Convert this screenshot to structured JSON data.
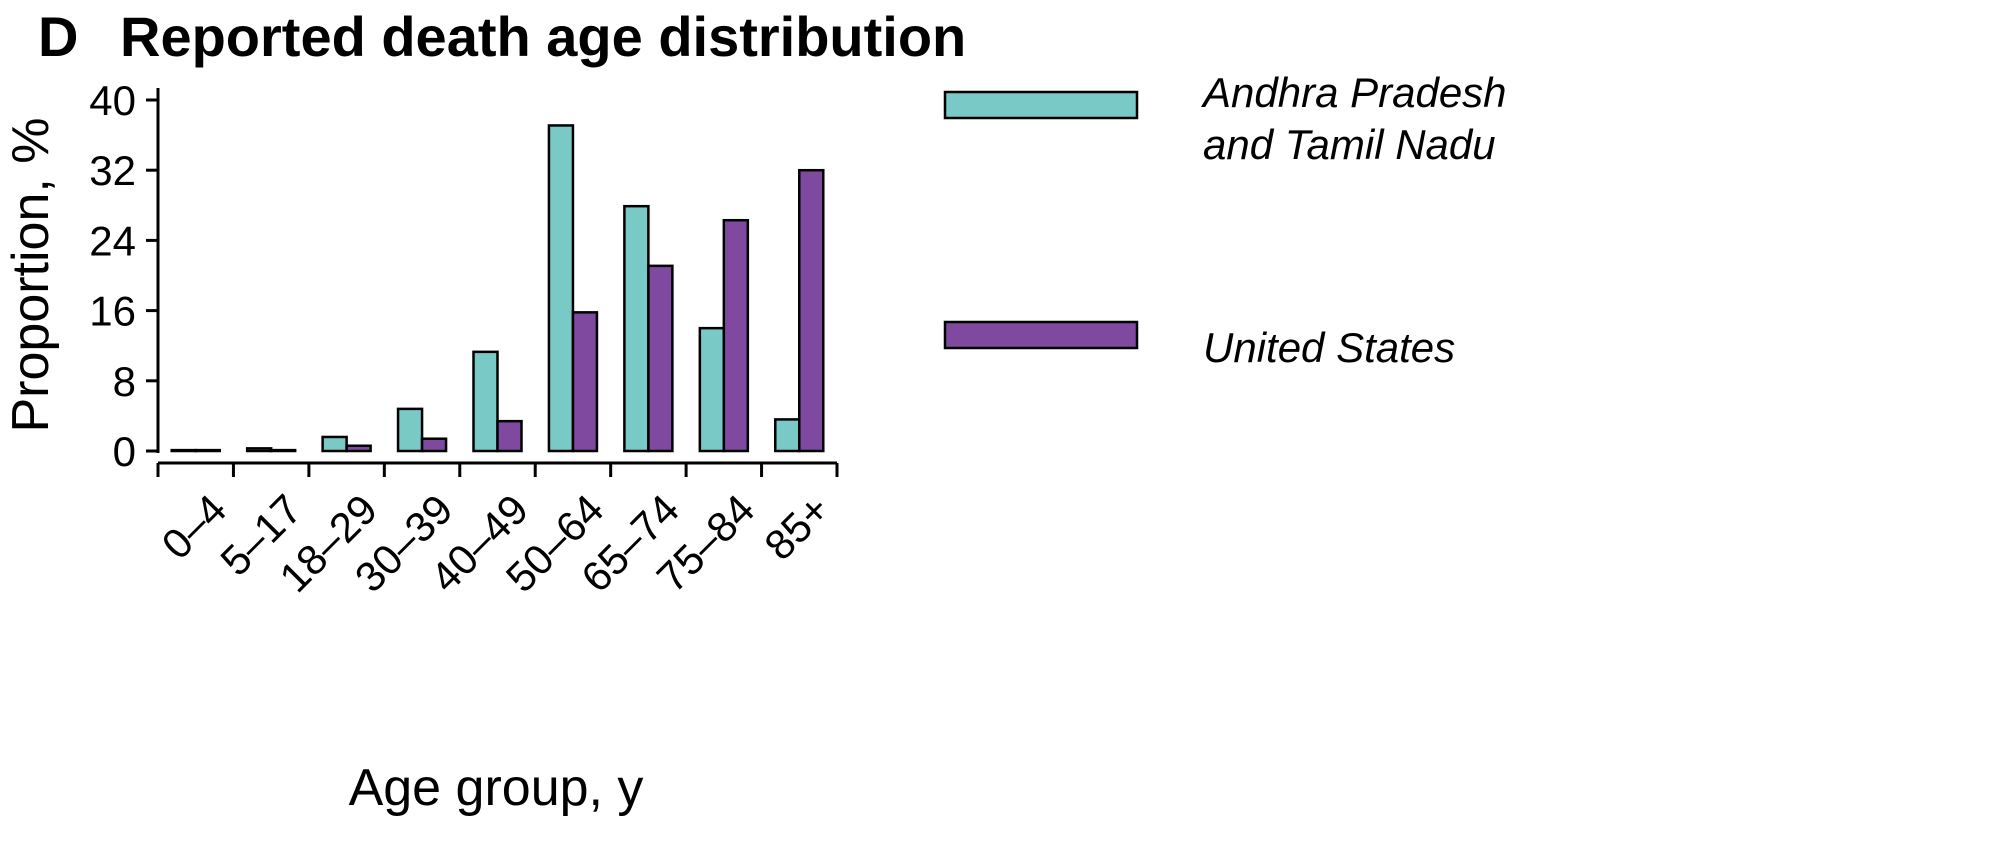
{
  "panel_label": "D",
  "chart_data": {
    "type": "bar",
    "title": "Reported death age distribution",
    "xlabel": "Age group, y",
    "ylabel": "Proportion, %",
    "categories": [
      "0–4",
      "5–17",
      "18–29",
      "30–39",
      "40–49",
      "50–64",
      "65–74",
      "75–84",
      "85+"
    ],
    "yticks": [
      "0",
      "8",
      "16",
      "24",
      "32",
      "40"
    ],
    "ylim": [
      0,
      40
    ],
    "grid": false,
    "legend_position": "right",
    "series": [
      {
        "name": "Andhra Pradesh and Tamil Nadu",
        "legend_lines": [
          "Andhra Pradesh",
          "and Tamil Nadu"
        ],
        "color": "#79c9c7",
        "values": [
          0.1,
          0.3,
          1.6,
          4.8,
          11.3,
          37.1,
          27.9,
          14.0,
          3.6
        ]
      },
      {
        "name": "United States",
        "legend_lines": [
          "United States"
        ],
        "color": "#8049a0",
        "values": [
          0.1,
          0.1,
          0.6,
          1.4,
          3.4,
          15.8,
          21.1,
          26.3,
          32.0
        ]
      }
    ]
  }
}
